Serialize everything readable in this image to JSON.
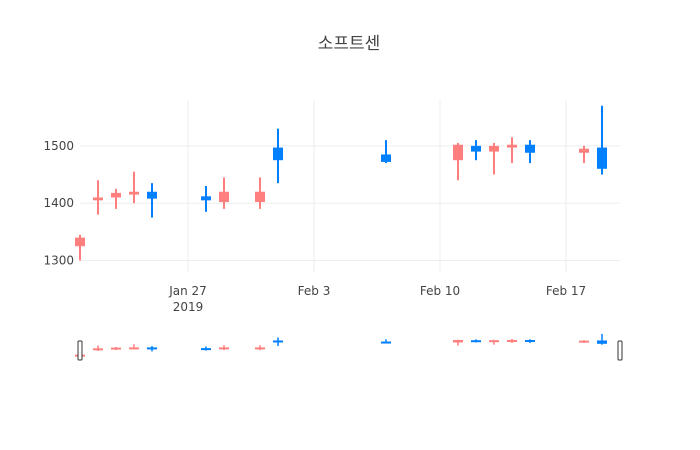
{
  "chart_data": {
    "type": "candlestick",
    "title": "소프트센",
    "xlabel": "",
    "ylabel": "",
    "ylim": [
      1280,
      1580
    ],
    "xlim": [
      "2019-01-21",
      "2019-02-20"
    ],
    "yticks": [
      {
        "value": 1300,
        "label": "1300"
      },
      {
        "value": 1400,
        "label": "1400"
      },
      {
        "value": 1500,
        "label": "1500"
      }
    ],
    "xticks": [
      {
        "date": "2019-01-27",
        "label": "Jan 27",
        "sublabel": "2019"
      },
      {
        "date": "2019-02-03",
        "label": "Feb 3",
        "sublabel": ""
      },
      {
        "date": "2019-02-10",
        "label": "Feb 10",
        "sublabel": ""
      },
      {
        "date": "2019-02-17",
        "label": "Feb 17",
        "sublabel": ""
      }
    ],
    "grid": true,
    "rangeslider": true,
    "colors": {
      "increasing": "#FF7F7F",
      "decreasing": "#0080FF"
    },
    "candles": [
      {
        "date": "2019-01-21",
        "open": 1325,
        "high": 1345,
        "low": 1300,
        "close": 1340
      },
      {
        "date": "2019-01-22",
        "open": 1405,
        "high": 1440,
        "low": 1380,
        "close": 1410
      },
      {
        "date": "2019-01-23",
        "open": 1410,
        "high": 1425,
        "low": 1390,
        "close": 1418
      },
      {
        "date": "2019-01-24",
        "open": 1415,
        "high": 1455,
        "low": 1400,
        "close": 1420
      },
      {
        "date": "2019-01-25",
        "open": 1420,
        "high": 1435,
        "low": 1375,
        "close": 1408
      },
      {
        "date": "2019-01-28",
        "open": 1412,
        "high": 1430,
        "low": 1385,
        "close": 1405
      },
      {
        "date": "2019-01-29",
        "open": 1402,
        "high": 1445,
        "low": 1390,
        "close": 1420
      },
      {
        "date": "2019-01-31",
        "open": 1402,
        "high": 1445,
        "low": 1390,
        "close": 1420
      },
      {
        "date": "2019-02-01",
        "open": 1497,
        "high": 1530,
        "low": 1435,
        "close": 1475
      },
      {
        "date": "2019-02-07",
        "open": 1485,
        "high": 1510,
        "low": 1470,
        "close": 1472
      },
      {
        "date": "2019-02-11",
        "open": 1475,
        "high": 1505,
        "low": 1440,
        "close": 1502
      },
      {
        "date": "2019-02-12",
        "open": 1500,
        "high": 1510,
        "low": 1475,
        "close": 1490
      },
      {
        "date": "2019-02-13",
        "open": 1490,
        "high": 1505,
        "low": 1450,
        "close": 1500
      },
      {
        "date": "2019-02-14",
        "open": 1497,
        "high": 1515,
        "low": 1470,
        "close": 1502
      },
      {
        "date": "2019-02-15",
        "open": 1502,
        "high": 1510,
        "low": 1470,
        "close": 1488
      },
      {
        "date": "2019-02-18",
        "open": 1488,
        "high": 1500,
        "low": 1470,
        "close": 1495
      },
      {
        "date": "2019-02-19",
        "open": 1497,
        "high": 1570,
        "low": 1450,
        "close": 1460
      }
    ]
  }
}
